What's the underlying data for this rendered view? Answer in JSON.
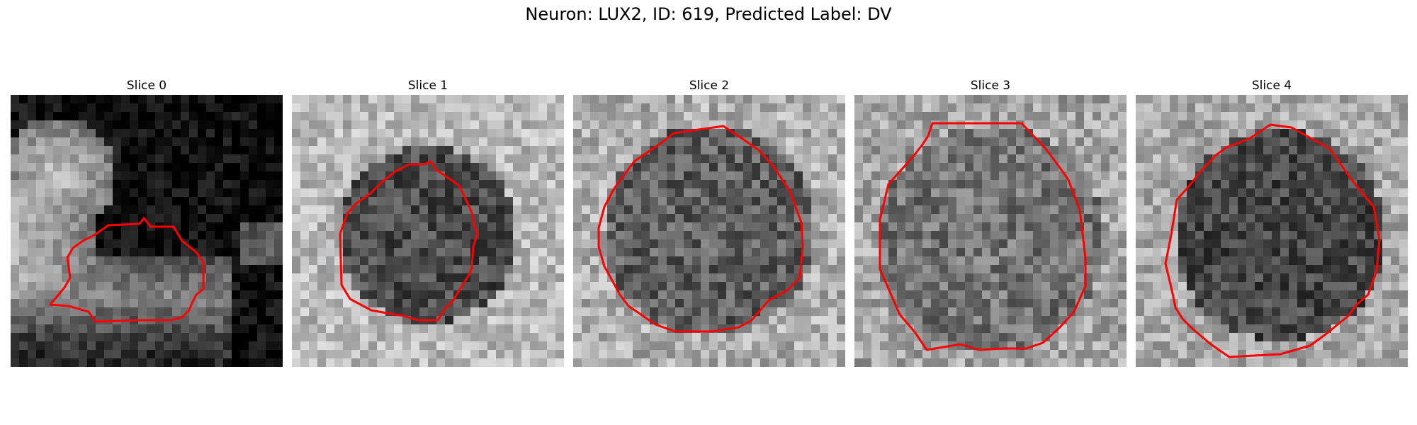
{
  "figure": {
    "title": "Neuron: LUX2, ID: 619, Predicted Label: DV"
  },
  "colors": {
    "contour": "#ff0000"
  },
  "panels": [
    {
      "title": "Slice 0",
      "image": "grayscale-microscopy-slice",
      "overlay": "red-neuron-contour"
    },
    {
      "title": "Slice 1",
      "image": "grayscale-microscopy-slice",
      "overlay": "red-neuron-contour"
    },
    {
      "title": "Slice 2",
      "image": "grayscale-microscopy-slice",
      "overlay": "red-neuron-contour"
    },
    {
      "title": "Slice 3",
      "image": "grayscale-microscopy-slice",
      "overlay": "red-neuron-contour"
    },
    {
      "title": "Slice 4",
      "image": "grayscale-microscopy-slice",
      "overlay": "red-neuron-contour"
    }
  ]
}
